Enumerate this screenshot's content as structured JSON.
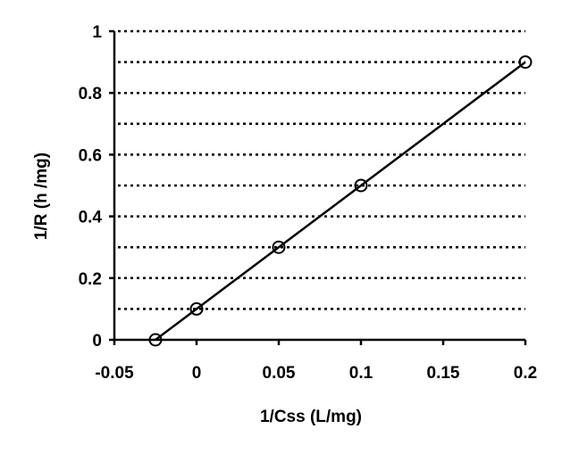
{
  "chart_data": {
    "type": "scatter",
    "title": "",
    "xlabel": "1/Css (L/mg)",
    "ylabel": "1/R (h /mg)",
    "xlim": [
      -0.05,
      0.2
    ],
    "ylim": [
      0,
      1
    ],
    "x_ticks": [
      -0.05,
      0,
      0.05,
      0.1,
      0.15,
      0.2
    ],
    "x_tick_labels": [
      "-0.05",
      "0",
      "0.05",
      "0.1",
      "0.15",
      "0.2"
    ],
    "y_ticks": [
      0,
      0.2,
      0.4,
      0.6,
      0.8,
      1
    ],
    "y_tick_labels": [
      "0",
      "0.2",
      "0.4",
      "0.6",
      "0.8",
      "1"
    ],
    "grid": "horizontal dotted lines every 0.1",
    "legend": "none",
    "series": [
      {
        "marker": "open-circle",
        "x": [
          -0.025,
          0,
          0.05,
          0.1,
          0.2
        ],
        "y": [
          0,
          0.1,
          0.3,
          0.5,
          0.9
        ]
      }
    ],
    "fit_line": {
      "x": [
        -0.025,
        0.2
      ],
      "y": [
        0,
        0.9
      ]
    },
    "colors": {
      "marks": "#000000",
      "background": "#ffffff"
    }
  }
}
